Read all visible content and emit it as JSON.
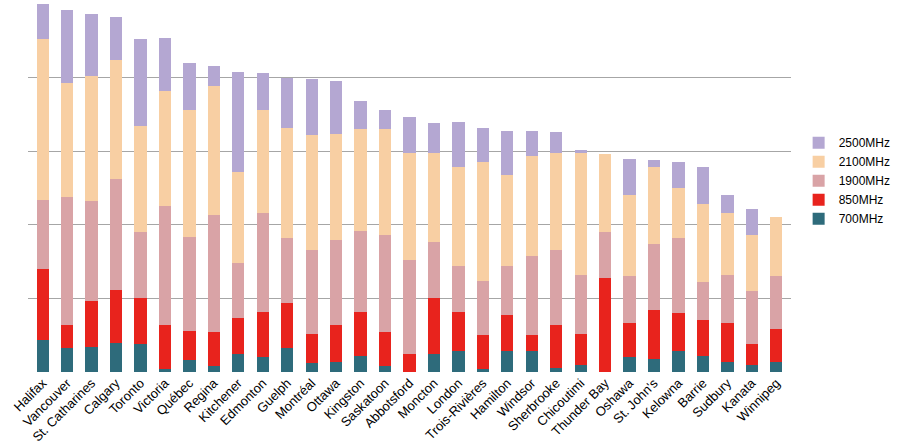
{
  "chart_data": {
    "type": "bar",
    "stacked": true,
    "grid": true,
    "legend": "right",
    "tick_labels": "x",
    "ylim": [
      0,
      250
    ],
    "yticks": [
      0,
      50,
      100,
      150,
      200,
      250
    ],
    "categories": [
      "Halifax",
      "Vancouver",
      "St. Catharines",
      "Calgary",
      "Toronto",
      "Victoria",
      "Québec",
      "Regina",
      "Kitchener",
      "Edmonton",
      "Guelph",
      "Montréal",
      "Ottawa",
      "Kingston",
      "Saskatoon",
      "Abbotsford",
      "Moncton",
      "London",
      "Trois-Rivières",
      "Hamilton",
      "Windsor",
      "Sherbrooke",
      "Chicoutimi",
      "Thunder Bay",
      "Oshawa",
      "St. John's",
      "Kelowna",
      "Barrie",
      "Sudbury",
      "Kanata",
      "Winnipeg"
    ],
    "series": [
      {
        "name": "700MHz",
        "color": "#2e6b7b",
        "values": [
          22,
          16,
          17,
          20,
          19,
          2,
          8,
          4,
          12,
          10,
          16,
          6,
          7,
          11,
          4,
          0,
          12,
          14,
          2,
          14,
          14,
          3,
          5,
          0,
          10,
          9,
          14,
          11,
          7,
          5,
          7
        ]
      },
      {
        "name": "850MHz",
        "color": "#e8231d",
        "values": [
          48,
          16,
          31,
          36,
          31,
          30,
          20,
          23,
          25,
          31,
          31,
          20,
          25,
          30,
          23,
          12,
          38,
          27,
          23,
          25,
          11,
          29,
          21,
          64,
          23,
          33,
          26,
          24,
          26,
          14,
          22
        ]
      },
      {
        "name": "1900MHz",
        "color": "#d9a3a6",
        "values": [
          47,
          87,
          68,
          75,
          45,
          81,
          64,
          80,
          37,
          67,
          44,
          57,
          58,
          55,
          66,
          64,
          38,
          31,
          37,
          33,
          54,
          51,
          40,
          31,
          32,
          45,
          51,
          26,
          33,
          36,
          36
        ]
      },
      {
        "name": "2100MHz",
        "color": "#f8cfa3",
        "values": [
          109,
          77,
          85,
          81,
          72,
          78,
          86,
          87,
          62,
          70,
          75,
          78,
          72,
          69,
          72,
          73,
          61,
          67,
          81,
          62,
          68,
          66,
          83,
          53,
          55,
          52,
          34,
          53,
          42,
          38,
          40
        ]
      },
      {
        "name": "2500MHz",
        "color": "#b4a7d2",
        "values": [
          24,
          50,
          42,
          29,
          59,
          36,
          32,
          14,
          68,
          25,
          34,
          38,
          36,
          19,
          13,
          24,
          20,
          31,
          23,
          30,
          17,
          14,
          2,
          0,
          25,
          5,
          18,
          25,
          12,
          18,
          0
        ]
      }
    ]
  }
}
